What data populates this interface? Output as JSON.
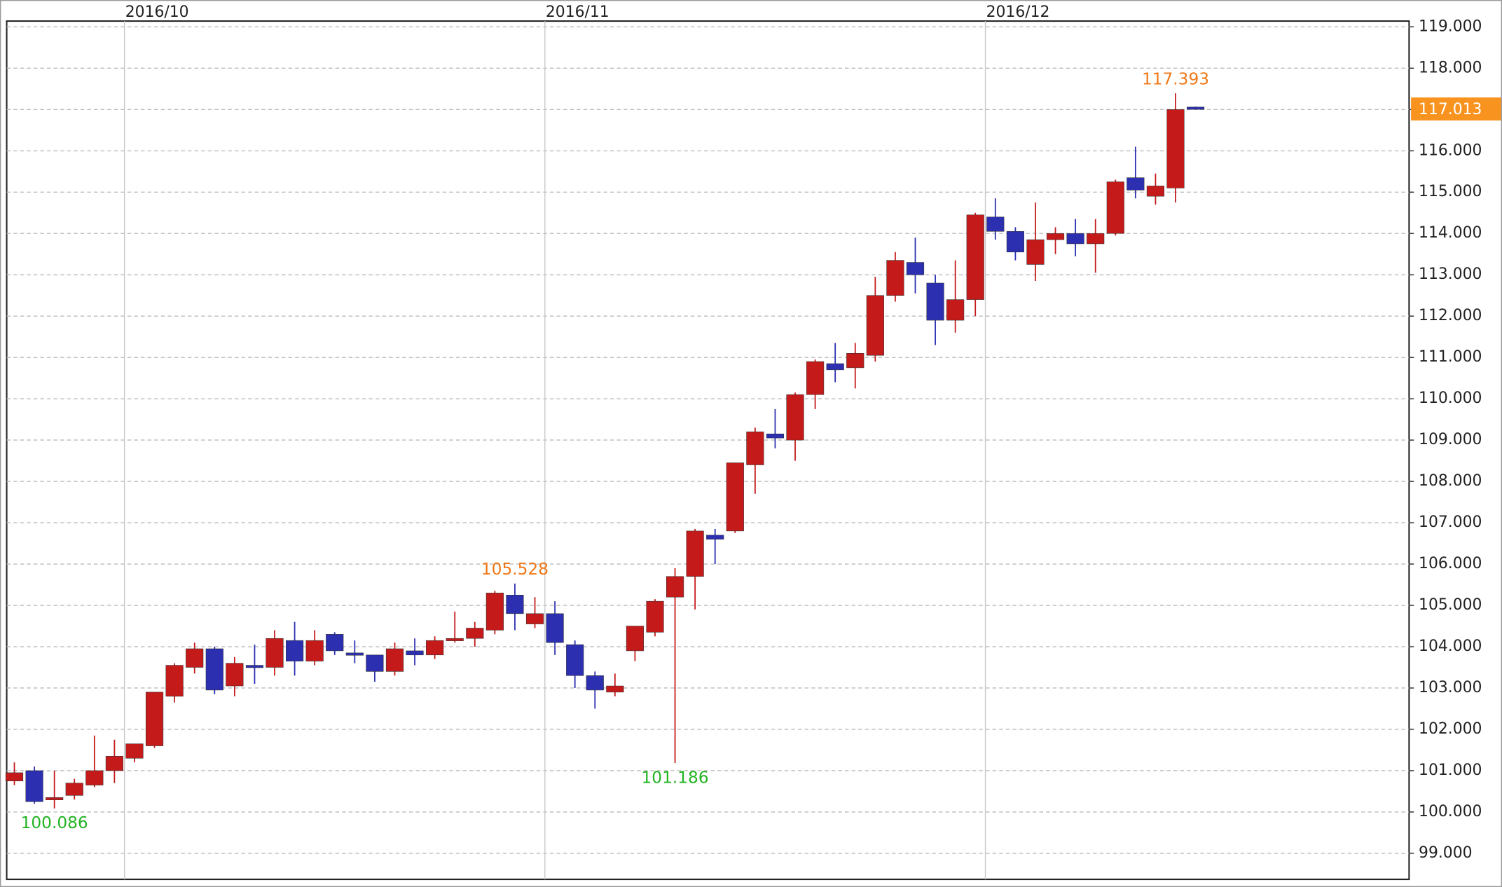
{
  "chart_data": {
    "type": "candlestick",
    "categories": [
      null,
      null,
      null,
      null,
      null,
      null,
      "2016/10",
      null,
      null,
      null,
      null,
      null,
      null,
      null,
      null,
      null,
      null,
      null,
      null,
      null,
      null,
      null,
      null,
      null,
      null,
      null,
      null,
      "2016/11",
      null,
      null,
      null,
      null,
      null,
      null,
      null,
      null,
      null,
      null,
      null,
      null,
      null,
      null,
      null,
      null,
      null,
      null,
      null,
      null,
      null,
      "2016/12",
      null,
      null,
      null,
      null,
      null,
      null,
      null,
      null,
      null,
      null
    ],
    "open": [
      100.75,
      101.0,
      100.3,
      100.4,
      100.65,
      101.0,
      101.3,
      101.6,
      102.8,
      103.5,
      103.95,
      103.05,
      103.55,
      103.5,
      104.15,
      103.65,
      104.3,
      103.85,
      103.8,
      103.4,
      103.9,
      103.8,
      104.15,
      104.2,
      104.4,
      105.25,
      104.55,
      104.8,
      104.05,
      103.3,
      102.9,
      103.9,
      104.35,
      105.2,
      105.7,
      106.7,
      106.8,
      108.4,
      109.15,
      109.0,
      110.1,
      110.85,
      110.75,
      111.05,
      112.5,
      113.3,
      112.8,
      111.9,
      112.4,
      114.4,
      114.05,
      113.25,
      113.85,
      114.0,
      113.75,
      114.0,
      115.35,
      114.9,
      115.1,
      117.06
    ],
    "high": [
      101.2,
      101.1,
      101.0,
      100.8,
      101.85,
      101.75,
      101.65,
      102.9,
      103.6,
      104.1,
      104.0,
      103.75,
      104.05,
      104.4,
      104.6,
      104.4,
      104.35,
      104.15,
      103.8,
      104.1,
      104.2,
      104.25,
      104.85,
      104.6,
      105.35,
      105.528,
      105.2,
      105.1,
      104.15,
      103.4,
      103.35,
      104.5,
      105.15,
      105.9,
      106.85,
      106.85,
      108.45,
      109.3,
      109.75,
      110.15,
      110.95,
      111.35,
      111.35,
      112.95,
      113.55,
      113.9,
      113.0,
      113.35,
      114.5,
      114.85,
      114.15,
      114.75,
      114.15,
      114.35,
      114.35,
      115.3,
      116.1,
      115.45,
      117.393,
      117.07
    ],
    "low": [
      100.65,
      100.2,
      100.086,
      100.3,
      100.6,
      100.7,
      101.2,
      101.55,
      102.65,
      103.35,
      102.85,
      102.8,
      103.1,
      103.3,
      103.3,
      103.55,
      103.8,
      103.6,
      103.15,
      103.3,
      103.55,
      103.7,
      104.1,
      104.0,
      104.3,
      104.4,
      104.45,
      103.8,
      103.0,
      102.5,
      102.8,
      103.65,
      104.25,
      101.186,
      104.9,
      106.0,
      106.75,
      107.7,
      108.8,
      108.5,
      109.75,
      110.4,
      110.25,
      110.9,
      112.35,
      112.55,
      111.3,
      111.6,
      112.0,
      113.85,
      113.35,
      112.85,
      113.5,
      113.45,
      113.05,
      113.95,
      114.85,
      114.7,
      114.75,
      117.0
    ],
    "close": [
      100.95,
      100.25,
      100.35,
      100.7,
      101.0,
      101.35,
      101.65,
      102.9,
      103.55,
      103.95,
      102.95,
      103.6,
      103.5,
      104.2,
      103.65,
      104.15,
      103.9,
      103.8,
      103.4,
      103.95,
      103.8,
      104.15,
      104.2,
      104.45,
      105.3,
      104.8,
      104.8,
      104.1,
      103.3,
      102.95,
      103.05,
      104.5,
      105.1,
      105.7,
      106.8,
      106.6,
      108.45,
      109.2,
      109.05,
      110.1,
      110.9,
      110.7,
      111.1,
      112.5,
      113.35,
      113.0,
      111.9,
      112.4,
      114.45,
      114.05,
      113.55,
      113.85,
      114.0,
      113.75,
      114.0,
      115.25,
      115.05,
      115.15,
      117.0,
      117.013
    ],
    "up_color": "#c41a1a",
    "down_color": "#2b2fb0",
    "ylim": [
      98.37,
      119.14
    ],
    "yticks": [
      {
        "value": 99,
        "label": "99.000"
      },
      {
        "value": 100,
        "label": "100.000"
      },
      {
        "value": 101,
        "label": "101.000"
      },
      {
        "value": 102,
        "label": "102.000"
      },
      {
        "value": 103,
        "label": "103.000"
      },
      {
        "value": 104,
        "label": "104.000"
      },
      {
        "value": 105,
        "label": "105.000"
      },
      {
        "value": 106,
        "label": "106.000"
      },
      {
        "value": 107,
        "label": "107.000"
      },
      {
        "value": 108,
        "label": "108.000"
      },
      {
        "value": 109,
        "label": "109.000"
      },
      {
        "value": 110,
        "label": "110.000"
      },
      {
        "value": 111,
        "label": "111.000"
      },
      {
        "value": 112,
        "label": "112.000"
      },
      {
        "value": 113,
        "label": "113.000"
      },
      {
        "value": 114,
        "label": "114.000"
      },
      {
        "value": 115,
        "label": "115.000"
      },
      {
        "value": 116,
        "label": "116.000"
      },
      {
        "value": 117,
        "label": "117.000"
      },
      {
        "value": 118,
        "label": "118.000"
      },
      {
        "value": 119,
        "label": "119.000"
      }
    ],
    "annotations": [
      {
        "label": "100.086",
        "value": 100.086,
        "color": "#22b422"
      },
      {
        "label": "105.528",
        "value": 105.528,
        "color": "#f07818"
      },
      {
        "label": "101.186",
        "value": 101.186,
        "color": "#22b422"
      },
      {
        "label": "117.393",
        "value": 117.393,
        "color": "#f07818"
      }
    ],
    "last_price": 117.013,
    "last_price_color": "#f7931e",
    "grid": true
  }
}
